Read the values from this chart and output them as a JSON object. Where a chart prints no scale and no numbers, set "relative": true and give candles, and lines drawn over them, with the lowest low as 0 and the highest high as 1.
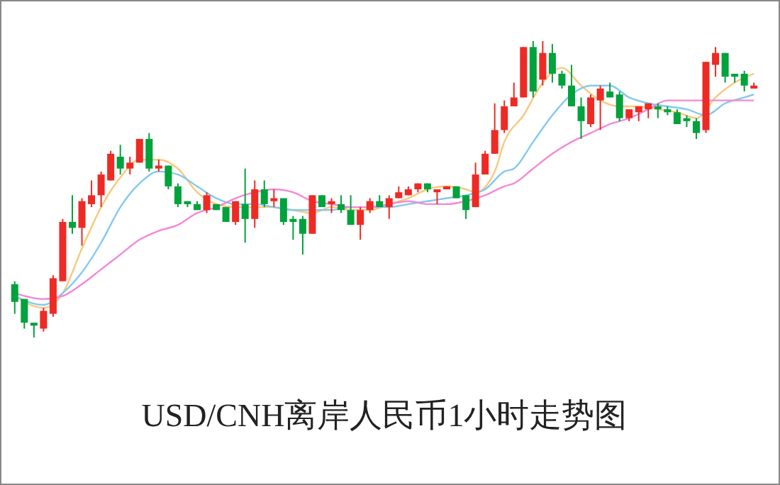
{
  "chart_data": {
    "type": "candlestick",
    "title": "USD/CNH离岸人民币1小时走势图",
    "relative": true,
    "categories": [
      null,
      null,
      null,
      null,
      null,
      null,
      null,
      null,
      null,
      null,
      null,
      null,
      null,
      null,
      null,
      null,
      null,
      null,
      null,
      null,
      null,
      null,
      null,
      null,
      null,
      null,
      null,
      null,
      null,
      null,
      null,
      null,
      null,
      null,
      null,
      null,
      null,
      null,
      null,
      null,
      null,
      null,
      null,
      null,
      null,
      null,
      null,
      null,
      null,
      null,
      null,
      null,
      null,
      null,
      null,
      null,
      null,
      null,
      null,
      null,
      null,
      null,
      null,
      null,
      null,
      null,
      null,
      null,
      null,
      null,
      null,
      null,
      null,
      null,
      null,
      null,
      null,
      null
    ],
    "ohlc": [
      [
        0.18,
        0.19,
        0.08,
        0.12
      ],
      [
        0.13,
        0.13,
        0.03,
        0.05
      ],
      [
        0.05,
        0.05,
        0,
        0.04
      ],
      [
        0.03,
        0.1,
        0.02,
        0.09
      ],
      [
        0.08,
        0.21,
        0.07,
        0.2
      ],
      [
        0.19,
        0.4,
        0.19,
        0.39
      ],
      [
        0.39,
        0.48,
        0.35,
        0.37
      ],
      [
        0.37,
        0.47,
        0.31,
        0.46
      ],
      [
        0.45,
        0.53,
        0.44,
        0.48
      ],
      [
        0.48,
        0.56,
        0.44,
        0.55
      ],
      [
        0.53,
        0.63,
        0.53,
        0.62
      ],
      [
        0.61,
        0.65,
        0.55,
        0.57
      ],
      [
        0.57,
        0.61,
        0.55,
        0.59
      ],
      [
        0.59,
        0.67,
        0.59,
        0.67
      ],
      [
        0.67,
        0.69,
        0.56,
        0.57
      ],
      [
        0.57,
        0.6,
        0.56,
        0.58
      ],
      [
        0.58,
        0.58,
        0.5,
        0.51
      ],
      [
        0.51,
        0.52,
        0.44,
        0.45
      ],
      [
        0.46,
        0.46,
        0.44,
        0.45
      ],
      [
        0.45,
        0.46,
        0.43,
        0.43
      ],
      [
        0.43,
        0.49,
        0.42,
        0.48
      ],
      [
        0.45,
        0.45,
        0.43,
        0.43
      ],
      [
        0.44,
        0.44,
        0.39,
        0.39
      ],
      [
        0.39,
        0.46,
        0.38,
        0.46
      ],
      [
        0.45,
        0.57,
        0.32,
        0.4
      ],
      [
        0.4,
        0.53,
        0.37,
        0.5
      ],
      [
        0.5,
        0.53,
        0.44,
        0.45
      ],
      [
        0.46,
        0.5,
        0.44,
        0.47
      ],
      [
        0.47,
        0.47,
        0.38,
        0.39
      ],
      [
        0.4,
        0.41,
        0.33,
        0.39
      ],
      [
        0.4,
        0.41,
        0.28,
        0.35
      ],
      [
        0.35,
        0.48,
        0.35,
        0.48
      ],
      [
        0.48,
        0.48,
        0.44,
        0.44
      ],
      [
        0.45,
        0.47,
        0.42,
        0.46
      ],
      [
        0.45,
        0.48,
        0.42,
        0.43
      ],
      [
        0.43,
        0.48,
        0.38,
        0.38
      ],
      [
        0.38,
        0.44,
        0.33,
        0.43
      ],
      [
        0.43,
        0.47,
        0.42,
        0.46
      ],
      [
        0.46,
        0.48,
        0.44,
        0.44
      ],
      [
        0.44,
        0.48,
        0.4,
        0.47
      ],
      [
        0.47,
        0.51,
        0.47,
        0.49
      ],
      [
        0.48,
        0.51,
        0.48,
        0.5
      ],
      [
        0.5,
        0.52,
        0.49,
        0.52
      ],
      [
        0.52,
        0.52,
        0.49,
        0.5
      ],
      [
        0.49,
        0.5,
        0.45,
        0.5
      ],
      [
        0.5,
        0.51,
        0.5,
        0.51
      ],
      [
        0.51,
        0.51,
        0.47,
        0.47
      ],
      [
        0.48,
        0.48,
        0.4,
        0.43
      ],
      [
        0.44,
        0.59,
        0.44,
        0.55
      ],
      [
        0.55,
        0.63,
        0.55,
        0.62
      ],
      [
        0.62,
        0.79,
        0.62,
        0.7
      ],
      [
        0.7,
        0.8,
        0.69,
        0.78
      ],
      [
        0.78,
        0.86,
        0.78,
        0.81
      ],
      [
        0.81,
        0.98,
        0.81,
        0.98
      ],
      [
        0.98,
        1,
        0.81,
        0.83
      ],
      [
        0.87,
        1,
        0.85,
        0.96
      ],
      [
        0.96,
        0.99,
        0.86,
        0.89
      ],
      [
        0.89,
        0.9,
        0.84,
        0.85
      ],
      [
        0.85,
        0.92,
        0.78,
        0.78
      ],
      [
        0.78,
        0.81,
        0.67,
        0.73
      ],
      [
        0.72,
        0.82,
        0.71,
        0.81
      ],
      [
        0.8,
        0.85,
        0.7,
        0.84
      ],
      [
        0.83,
        0.86,
        0.81,
        0.81
      ],
      [
        0.82,
        0.83,
        0.73,
        0.74
      ],
      [
        0.74,
        0.77,
        0.73,
        0.77
      ],
      [
        0.76,
        0.78,
        0.73,
        0.78
      ],
      [
        0.77,
        0.79,
        0.74,
        0.79
      ],
      [
        0.78,
        0.79,
        0.74,
        0.77
      ],
      [
        0.77,
        0.78,
        0.75,
        0.76
      ],
      [
        0.76,
        0.77,
        0.72,
        0.72
      ],
      [
        0.74,
        0.75,
        0.71,
        0.73
      ],
      [
        0.73,
        0.74,
        0.67,
        0.69
      ],
      [
        0.7,
        0.93,
        0.69,
        0.93
      ],
      [
        0.92,
        0.98,
        0.88,
        0.96
      ],
      [
        0.96,
        0.96,
        0.86,
        0.88
      ],
      [
        0.89,
        0.89,
        0.86,
        0.88
      ],
      [
        0.89,
        0.9,
        0.83,
        0.85
      ],
      [
        0.84,
        0.86,
        0.84,
        0.85
      ]
    ],
    "colors": [
      "#00a23c",
      "#00a23c",
      "#00a23c",
      "#ee2a24",
      "#ee2a24",
      "#ee2a24",
      "#00a23c",
      "#ee2a24",
      "#ee2a24",
      "#ee2a24",
      "#ee2a24",
      "#00a23c",
      "#ee2a24",
      "#ee2a24",
      "#00a23c",
      "#ee2a24",
      "#00a23c",
      "#00a23c",
      "#00a23c",
      "#00a23c",
      "#ee2a24",
      "#00a23c",
      "#00a23c",
      "#ee2a24",
      "#00a23c",
      "#ee2a24",
      "#00a23c",
      "#ee2a24",
      "#00a23c",
      "#00a23c",
      "#00a23c",
      "#ee2a24",
      "#00a23c",
      "#ee2a24",
      "#00a23c",
      "#00a23c",
      "#ee2a24",
      "#ee2a24",
      "#00a23c",
      "#ee2a24",
      "#ee2a24",
      "#ee2a24",
      "#ee2a24",
      "#00a23c",
      "#ee2a24",
      "#ee2a24",
      "#00a23c",
      "#00a23c",
      "#ee2a24",
      "#ee2a24",
      "#ee2a24",
      "#ee2a24",
      "#ee2a24",
      "#ee2a24",
      "#00a23c",
      "#ee2a24",
      "#00a23c",
      "#00a23c",
      "#00a23c",
      "#00a23c",
      "#ee2a24",
      "#ee2a24",
      "#00a23c",
      "#00a23c",
      "#ee2a24",
      "#ee2a24",
      "#ee2a24",
      "#00a23c",
      "#00a23c",
      "#00a23c",
      "#00a23c",
      "#00a23c",
      "#ee2a24",
      "#ee2a24",
      "#00a23c",
      "#00a23c",
      "#00a23c",
      "#ee2a24"
    ],
    "series": [
      {
        "type": "line",
        "color": "#f8c87c",
        "values": [
          0.14,
          null,
          null,
          0.1,
          null,
          0.15,
          null,
          0.3,
          null,
          0.44,
          null,
          0.54,
          null,
          0.6,
          null,
          0.6,
          null,
          0.57,
          null,
          0.49,
          null,
          0.45,
          null,
          0.44,
          null,
          0.44,
          null,
          0.44,
          null,
          0.43,
          null,
          0.42,
          null,
          0.44,
          null,
          0.43,
          null,
          0.43,
          null,
          0.45,
          null,
          0.47,
          null,
          0.5,
          null,
          0.51,
          null,
          0.5,
          0.49,
          null,
          0.56,
          0.66,
          null,
          0.75,
          null,
          0.86,
          null,
          0.91,
          null,
          0.85,
          null,
          0.8,
          null,
          0.78,
          null,
          0.78,
          null,
          0.77,
          null,
          0.76,
          null,
          0.74,
          null,
          0.81,
          null,
          0.86,
          null,
          0.89
        ]
      },
      {
        "type": "line",
        "color": "#84c8f0",
        "values": [
          0.14,
          null,
          null,
          0.11,
          null,
          0.15,
          null,
          0.22,
          null,
          0.32,
          null,
          0.44,
          null,
          0.52,
          null,
          0.56,
          null,
          0.55,
          null,
          0.51,
          null,
          0.47,
          null,
          0.45,
          null,
          0.45,
          null,
          0.44,
          null,
          0.43,
          null,
          0.43,
          null,
          0.43,
          null,
          0.44,
          null,
          0.44,
          null,
          0.44,
          null,
          0.45,
          null,
          0.46,
          null,
          0.47,
          null,
          0.48,
          null,
          0.5,
          null,
          0.56,
          0.57,
          null,
          0.66,
          null,
          0.75,
          null,
          0.82,
          null,
          0.85,
          null,
          0.85,
          null,
          0.81,
          null,
          0.79,
          null,
          0.78,
          null,
          0.77,
          null,
          0.75,
          null,
          0.79,
          null,
          0.81,
          0.82
        ]
      },
      {
        "type": "line",
        "color": "#f488d8",
        "values": [
          0.15,
          null,
          null,
          0.13,
          null,
          0.14,
          null,
          0.18,
          null,
          0.23,
          null,
          0.28,
          null,
          0.33,
          null,
          0.36,
          null,
          0.38,
          null,
          0.42,
          null,
          0.44,
          null,
          0.47,
          null,
          0.49,
          null,
          0.5,
          null,
          0.49,
          null,
          0.46,
          null,
          0.45,
          null,
          0.44,
          null,
          0.44,
          null,
          0.45,
          null,
          0.46,
          null,
          0.45,
          null,
          0.45,
          null,
          0.46,
          null,
          0.48,
          null,
          0.51,
          0.52,
          null,
          0.57,
          null,
          0.62,
          null,
          0.66,
          null,
          0.69,
          null,
          0.72,
          null,
          0.74,
          null,
          0.77,
          null,
          0.8,
          null,
          0.8,
          null,
          0.8,
          null,
          0.8,
          null,
          0.8,
          0.8
        ]
      }
    ]
  }
}
